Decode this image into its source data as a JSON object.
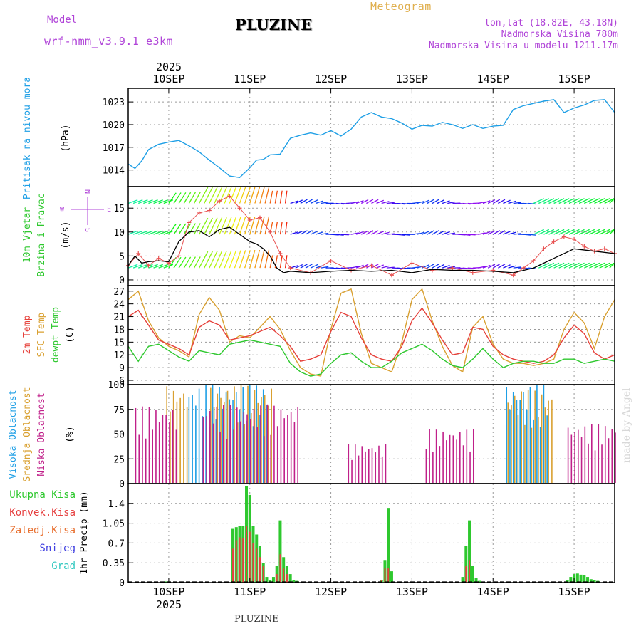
{
  "header": {
    "model_label": "Model",
    "model_name": "wrf-nmm_v3.9.1  e3km",
    "location": "PLUZINE",
    "product": "Meteogram",
    "coords": "lon,lat (18.82E, 43.18N)",
    "elevation": "Nadmorska Visina 780m",
    "model_elevation": "Nadmorska Visina u modelu 1211.17m",
    "footer_location": "PLUZINE",
    "watermark": "made by Angel"
  },
  "time_axis": {
    "year": "2025",
    "days": [
      "10SEP",
      "11SEP",
      "12SEP",
      "13SEP",
      "14SEP",
      "15SEP"
    ]
  },
  "colors": {
    "pressure": "#1e9fe6",
    "t2m": "#e6403a",
    "sfc": "#d9a030",
    "dew": "#2ec82e",
    "wind_speed": "#000000",
    "wind_cross": "#e85050",
    "high_cloud": "#1e9fe6",
    "mid_cloud": "#d9a030",
    "low_cloud": "#c0208a",
    "total_precip": "#2ec82e",
    "conv_precip": "#e64040",
    "frozen": "#e87030",
    "snow": "#4040e0",
    "hail": "#30c8c0",
    "header_purple": "#b044d8",
    "header_orange": "#e0b050"
  },
  "panels": {
    "pressure": {
      "ylabel": "Pritisak na nivou mora",
      "unit": "(hPa)",
      "ticks": [
        "1014",
        "1017",
        "1020",
        "1023"
      ]
    },
    "wind": {
      "ylabel1": "10m Vjetar",
      "ylabel2": "Brzina i Pravac",
      "unit": "(m/s)",
      "ticks": [
        "0",
        "5",
        "10",
        "15"
      ],
      "compass": {
        "n": "N",
        "w": "W",
        "e": "E",
        "s": "S"
      }
    },
    "temp": {
      "label_t2m": "2m Temp",
      "label_sfc": "SFC Temp",
      "label_dew": "dewpt Temp",
      "unit": "(C)",
      "ticks": [
        "6",
        "9",
        "12",
        "15",
        "18",
        "21",
        "24",
        "27"
      ]
    },
    "cloud": {
      "label_high": "Visoka Oblacnost",
      "label_mid": "Srednja Oblacnost",
      "label_low": "Niska Oblacnost",
      "unit": "(%)",
      "ticks": [
        "0",
        "25",
        "50",
        "75",
        "100"
      ]
    },
    "precip": {
      "ylabel": "1hr Precip (mm)",
      "ticks": [
        "0",
        "0.35",
        "0.7",
        "1.05",
        "1.4"
      ],
      "legend": [
        "Ukupna Kisa",
        "Konvek.Kisa",
        "Zaledj.Kisa",
        "Snijeg",
        "Grad"
      ]
    }
  },
  "chart_data": {
    "type": "line",
    "title": "PLUZINE Meteogram",
    "x_unit": "hours since 09SEP 12UTC",
    "x_range": [
      0,
      144
    ],
    "pressure": {
      "ylim": [
        1011.8,
        1024.8
      ],
      "x": [
        0,
        2,
        4,
        6,
        9,
        12,
        15,
        18,
        21,
        24,
        27,
        30,
        33,
        36,
        38,
        40,
        42,
        45,
        48,
        51,
        54,
        57,
        60,
        63,
        66,
        69,
        72,
        75,
        78,
        81,
        84,
        87,
        90,
        93,
        96,
        99,
        102,
        105,
        108,
        111,
        114,
        117,
        120,
        123,
        126,
        129,
        132,
        135,
        138,
        141,
        144
      ],
      "values": [
        1014.8,
        1014.2,
        1015.2,
        1016.7,
        1017.4,
        1017.7,
        1017.9,
        1017.2,
        1016.4,
        1015.3,
        1014.3,
        1013.2,
        1013.0,
        1014.3,
        1015.3,
        1015.4,
        1016.0,
        1016.1,
        1018.2,
        1018.6,
        1018.9,
        1018.6,
        1019.2,
        1018.5,
        1019.4,
        1021.0,
        1021.6,
        1021.0,
        1020.8,
        1020.2,
        1019.4,
        1019.9,
        1019.8,
        1020.3,
        1020.0,
        1019.5,
        1020.0,
        1019.5,
        1019.8,
        1019.9,
        1022.0,
        1022.5,
        1022.8,
        1023.1,
        1023.3,
        1021.6,
        1022.2,
        1022.6,
        1023.2,
        1023.3,
        1021.6
      ]
    },
    "wind": {
      "ylim": [
        -1.2,
        19.5
      ],
      "speed_x": [
        0,
        2,
        4,
        6,
        9,
        12,
        15,
        18,
        21,
        24,
        27,
        30,
        33,
        36,
        38,
        40,
        42,
        44,
        46,
        48,
        54,
        60,
        66,
        72,
        78,
        84,
        90,
        96,
        102,
        108,
        114,
        120,
        126,
        132,
        138,
        144
      ],
      "speed": [
        3.0,
        5.0,
        3.5,
        3.8,
        4.0,
        3.8,
        8.0,
        10.0,
        10.3,
        9.0,
        10.5,
        11.0,
        9.5,
        8.0,
        7.5,
        6.5,
        5.0,
        2.5,
        1.5,
        1.8,
        1.5,
        1.8,
        2.0,
        1.8,
        2.0,
        1.5,
        2.2,
        2.0,
        2.0,
        1.8,
        1.5,
        2.5,
        4.5,
        6.5,
        6.0,
        5.5
      ],
      "cross_x": [
        0,
        3,
        6,
        9,
        12,
        15,
        18,
        21,
        24,
        27,
        30,
        33,
        36,
        39,
        42,
        45,
        48,
        54,
        60,
        66,
        72,
        78,
        84,
        90,
        96,
        102,
        108,
        114,
        117,
        120,
        123,
        126,
        129,
        132,
        135,
        138,
        141,
        144
      ],
      "cross": [
        3.0,
        5.5,
        3.0,
        4.5,
        3.5,
        5.0,
        12.0,
        14.0,
        14.5,
        16.5,
        17.5,
        15.0,
        12.5,
        13.0,
        10.0,
        5.5,
        2.5,
        1.5,
        4.0,
        2.0,
        3.0,
        1.0,
        3.5,
        2.0,
        2.5,
        1.5,
        2.0,
        1.0,
        2.5,
        4.0,
        6.5,
        8.0,
        9.0,
        8.5,
        7.0,
        6.0,
        6.5,
        5.5
      ],
      "rows": [
        16,
        9.5,
        2.5
      ]
    },
    "temperature": {
      "ylim": [
        5.0,
        28.3
      ],
      "x": [
        0,
        3,
        6,
        9,
        12,
        15,
        18,
        21,
        24,
        27,
        30,
        33,
        36,
        39,
        42,
        45,
        48,
        51,
        54,
        57,
        60,
        63,
        66,
        69,
        72,
        75,
        78,
        81,
        84,
        87,
        90,
        93,
        96,
        99,
        102,
        105,
        108,
        111,
        114,
        117,
        120,
        123,
        126,
        129,
        132,
        135,
        138,
        141,
        144
      ],
      "t2m": [
        21,
        22.5,
        19,
        15.5,
        14.5,
        13.5,
        12.0,
        18.5,
        20.0,
        19.0,
        15.5,
        16.0,
        16.5,
        17.5,
        18.5,
        16.5,
        14.0,
        10.5,
        11.0,
        12.0,
        17.5,
        22.0,
        21.0,
        16.0,
        12.0,
        11.0,
        10.5,
        14.0,
        20.0,
        23.0,
        19.5,
        15.5,
        12.0,
        12.5,
        18.5,
        18.0,
        14.0,
        12.0,
        11.0,
        10.5,
        10.0,
        10.5,
        12.0,
        16.0,
        19.0,
        17.0,
        12.5,
        11.0,
        12.0
      ],
      "sfc": [
        25,
        27,
        20,
        16,
        14,
        13,
        11.5,
        21.5,
        25.5,
        22.5,
        15,
        16.5,
        16,
        18.5,
        21,
        18,
        13,
        9,
        7.5,
        7,
        18,
        26.5,
        27.5,
        17,
        10,
        9,
        8,
        15,
        25,
        27.5,
        20,
        14,
        9.5,
        8,
        18.5,
        21,
        14.5,
        11,
        10,
        10,
        9.5,
        10,
        11,
        18,
        22,
        19.5,
        13.5,
        21,
        25
      ],
      "dew": [
        14,
        10.5,
        14,
        14.5,
        13,
        11.5,
        10.5,
        13.0,
        12.5,
        12,
        14.5,
        15.0,
        15.5,
        15.0,
        14.5,
        14.0,
        10.0,
        8.0,
        7.0,
        7.5,
        10.0,
        12.0,
        12.5,
        10.5,
        9.0,
        9.0,
        10.5,
        12.5,
        13.5,
        14.5,
        13.0,
        11.0,
        9.5,
        9.0,
        11.0,
        13.5,
        11.0,
        9.0,
        10.0,
        10.5,
        10.5,
        10.0,
        10.0,
        11.0,
        11.0,
        10.0,
        10.5,
        11.0,
        10.5
      ]
    },
    "clouds": {
      "ylim": [
        0,
        100
      ],
      "high": [
        {
          "start": 18,
          "end": 41,
          "value": 100
        },
        {
          "start": 112,
          "end": 124,
          "value": 100
        }
      ],
      "mid": [
        {
          "start": 11,
          "end": 17,
          "value": 100
        },
        {
          "start": 24,
          "end": 42,
          "value": 100
        },
        {
          "start": 112,
          "end": 125,
          "value": 95
        }
      ],
      "low": [
        {
          "start": 2,
          "end": 14,
          "value": 78
        },
        {
          "start": 22,
          "end": 50,
          "value": 80
        },
        {
          "start": 65,
          "end": 76,
          "value": 40
        },
        {
          "start": 88,
          "end": 102,
          "value": 55
        },
        {
          "start": 130,
          "end": 144,
          "value": 60
        }
      ]
    },
    "precip": {
      "ylim": [
        0,
        1.75
      ],
      "total_x": [
        11,
        12,
        31,
        32,
        33,
        34,
        35,
        36,
        37,
        38,
        39,
        40,
        41,
        42,
        43,
        44,
        45,
        46,
        47,
        48,
        49,
        50,
        75,
        76,
        77,
        78,
        99,
        100,
        101,
        102,
        103,
        104,
        130,
        131,
        132,
        133,
        134,
        135,
        136,
        137,
        138,
        139
      ],
      "total": [
        0.02,
        0.02,
        0.95,
        0.98,
        1.0,
        1.0,
        1.7,
        1.55,
        1.0,
        0.85,
        0.65,
        0.35,
        0.1,
        0.05,
        0.1,
        0.3,
        1.1,
        0.45,
        0.3,
        0.15,
        0.05,
        0.03,
        0.05,
        0.4,
        1.32,
        0.2,
        0.1,
        0.65,
        1.1,
        0.3,
        0.08,
        0.03,
        0.05,
        0.1,
        0.15,
        0.16,
        0.14,
        0.13,
        0.1,
        0.06,
        0.04,
        0.03
      ],
      "conv_x": [
        31,
        32,
        33,
        34,
        35,
        36,
        37,
        38,
        39,
        40,
        44,
        45,
        46,
        47,
        75,
        76,
        77,
        100,
        101
      ],
      "conv": [
        0.6,
        0.75,
        0.8,
        0.78,
        1.0,
        0.9,
        0.7,
        0.6,
        0.45,
        0.3,
        0.15,
        0.5,
        0.25,
        0.15,
        0.05,
        0.25,
        0.25,
        0.3,
        0.4
      ]
    }
  }
}
